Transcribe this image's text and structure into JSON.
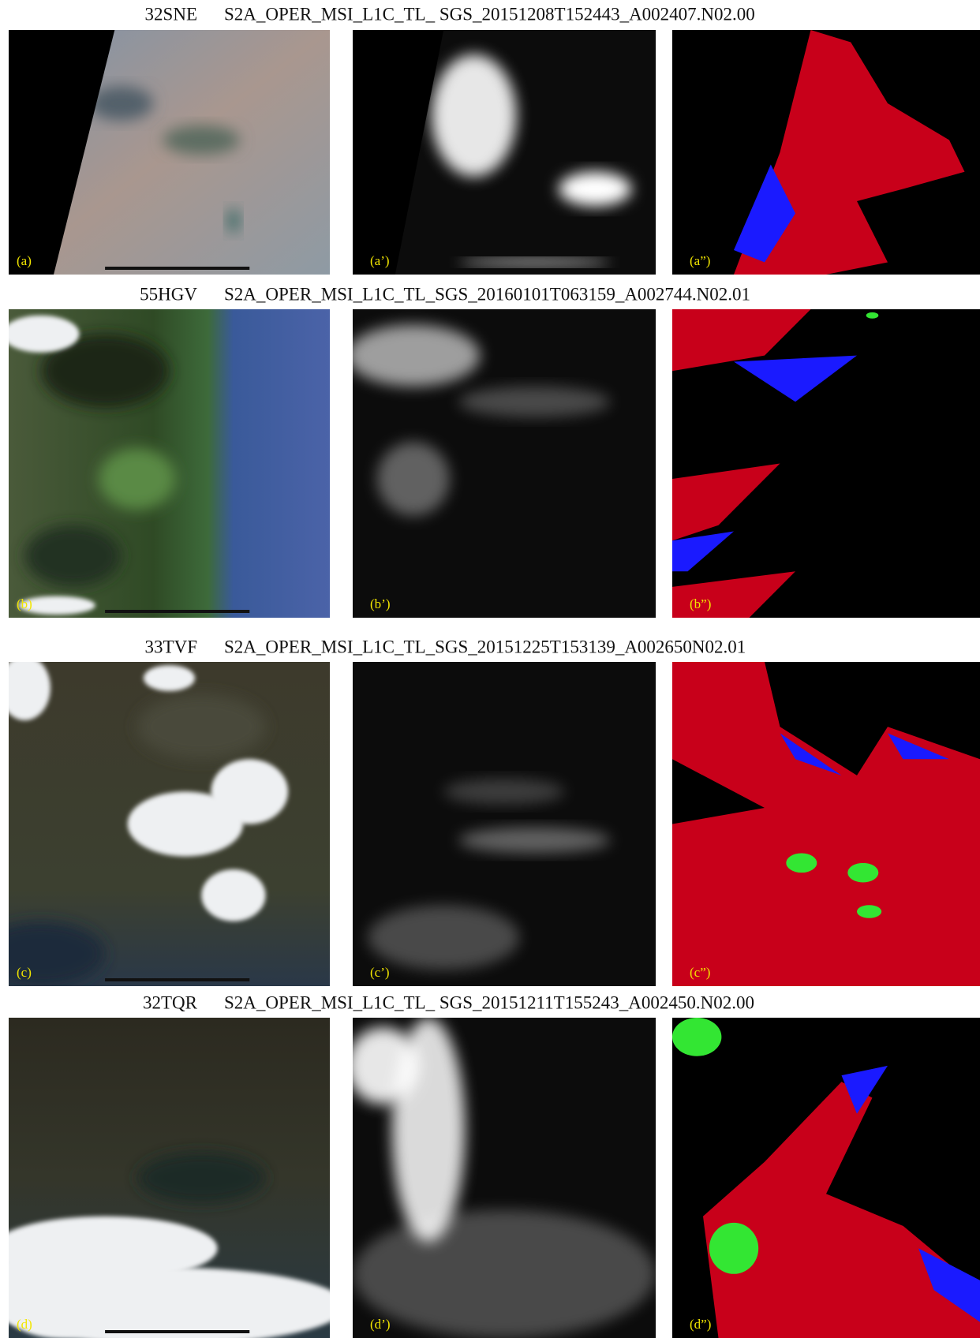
{
  "figure": {
    "rows": [
      {
        "tile": "32SNE",
        "product": "S2A_OPER_MSI_L1C_TL_ SGS_20151208T152443_A002407.N02.00",
        "labels": [
          "(a)",
          "(a’)",
          "(a”)"
        ]
      },
      {
        "tile": "55HGV",
        "product": "S2A_OPER_MSI_L1C_TL_SGS_20160101T063159_A002744.N02.01",
        "labels": [
          "(b)",
          "(b’)",
          "(b”)"
        ]
      },
      {
        "tile": "33TVF",
        "product": "S2A_OPER_MSI_L1C_TL_SGS_20151225T153139_A002650N02.01",
        "labels": [
          "(c)",
          "(c’)",
          "(c”)"
        ]
      },
      {
        "tile": "32TQR",
        "product": "S2A_OPER_MSI_L1C_TL_ SGS_20151211T155243_A002450.N02.00",
        "labels": [
          "(d)",
          "(d’)",
          "(d”)"
        ]
      }
    ]
  }
}
